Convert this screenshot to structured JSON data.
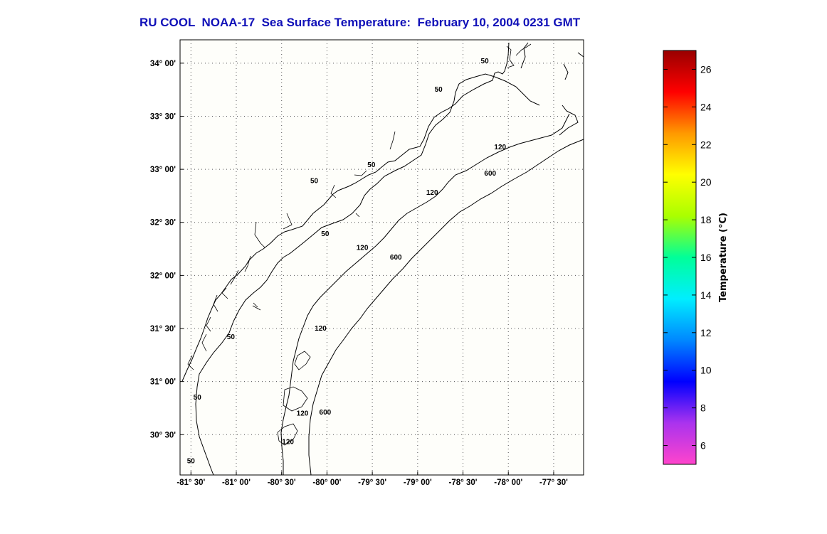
{
  "title": "RU COOL  NOAA-17  Sea Surface Temperature:  February 10, 2004 0231 GMT",
  "map": {
    "lon_range": [
      -81.62,
      -77.17
    ],
    "lat_range": [
      30.12,
      34.22
    ],
    "lon_ticks": [
      {
        "value": -81.5,
        "label": "-81° 30'"
      },
      {
        "value": -81.0,
        "label": "-81° 00'"
      },
      {
        "value": -80.5,
        "label": "-80° 30'"
      },
      {
        "value": -80.0,
        "label": "-80° 00'"
      },
      {
        "value": -79.5,
        "label": "-79° 30'"
      },
      {
        "value": -79.0,
        "label": "-79° 00'"
      },
      {
        "value": -78.5,
        "label": "-78° 30'"
      },
      {
        "value": -78.0,
        "label": "-78° 00'"
      },
      {
        "value": -77.5,
        "label": "-77° 30'"
      }
    ],
    "lat_ticks": [
      {
        "value": 34.0,
        "label": "34° 00'"
      },
      {
        "value": 33.5,
        "label": "33° 30'"
      },
      {
        "value": 33.0,
        "label": "33° 00'"
      },
      {
        "value": 32.5,
        "label": "32° 30'"
      },
      {
        "value": 32.0,
        "label": "32° 00'"
      },
      {
        "value": 31.5,
        "label": "31° 30'"
      },
      {
        "value": 31.0,
        "label": "31° 00'"
      },
      {
        "value": 30.5,
        "label": "30° 30'"
      }
    ],
    "grid": true,
    "contour_labels": [
      {
        "text": "50",
        "lon": -78.26,
        "lat": 34.02
      },
      {
        "text": "50",
        "lon": -78.77,
        "lat": 33.75
      },
      {
        "text": "50",
        "lon": -79.51,
        "lat": 33.04
      },
      {
        "text": "50",
        "lon": -80.14,
        "lat": 32.89
      },
      {
        "text": "50",
        "lon": -80.02,
        "lat": 32.39
      },
      {
        "text": "50",
        "lon": -81.06,
        "lat": 31.42
      },
      {
        "text": "50",
        "lon": -81.43,
        "lat": 30.85
      },
      {
        "text": "50",
        "lon": -81.5,
        "lat": 30.25
      },
      {
        "text": "120",
        "lon": -78.09,
        "lat": 33.21
      },
      {
        "text": "120",
        "lon": -78.84,
        "lat": 32.78
      },
      {
        "text": "120",
        "lon": -79.61,
        "lat": 32.26
      },
      {
        "text": "120",
        "lon": -80.07,
        "lat": 31.5
      },
      {
        "text": "120",
        "lon": -80.27,
        "lat": 30.7
      },
      {
        "text": "120",
        "lon": -80.43,
        "lat": 30.43
      },
      {
        "text": "600",
        "lon": -78.2,
        "lat": 32.96
      },
      {
        "text": "600",
        "lon": -79.24,
        "lat": 32.17
      },
      {
        "text": "600",
        "lon": -80.02,
        "lat": 30.71
      }
    ]
  },
  "colorbar": {
    "label": "Temperature (°C)",
    "range": [
      5,
      27
    ],
    "ticks": [
      {
        "value": 26,
        "label": "26"
      },
      {
        "value": 24,
        "label": "24"
      },
      {
        "value": 22,
        "label": "22"
      },
      {
        "value": 20,
        "label": "20"
      },
      {
        "value": 18,
        "label": "18"
      },
      {
        "value": 16,
        "label": "16"
      },
      {
        "value": 14,
        "label": "14"
      },
      {
        "value": 12,
        "label": "12"
      },
      {
        "value": 10,
        "label": "10"
      },
      {
        "value": 8,
        "label": "8"
      },
      {
        "value": 6,
        "label": "6"
      }
    ],
    "colors": [
      "#ff44cc",
      "#aa33ee",
      "#0000ff",
      "#0088ff",
      "#00eeff",
      "#00ff99",
      "#aaff00",
      "#ffff00",
      "#ff9900",
      "#ff0000",
      "#990000"
    ]
  }
}
